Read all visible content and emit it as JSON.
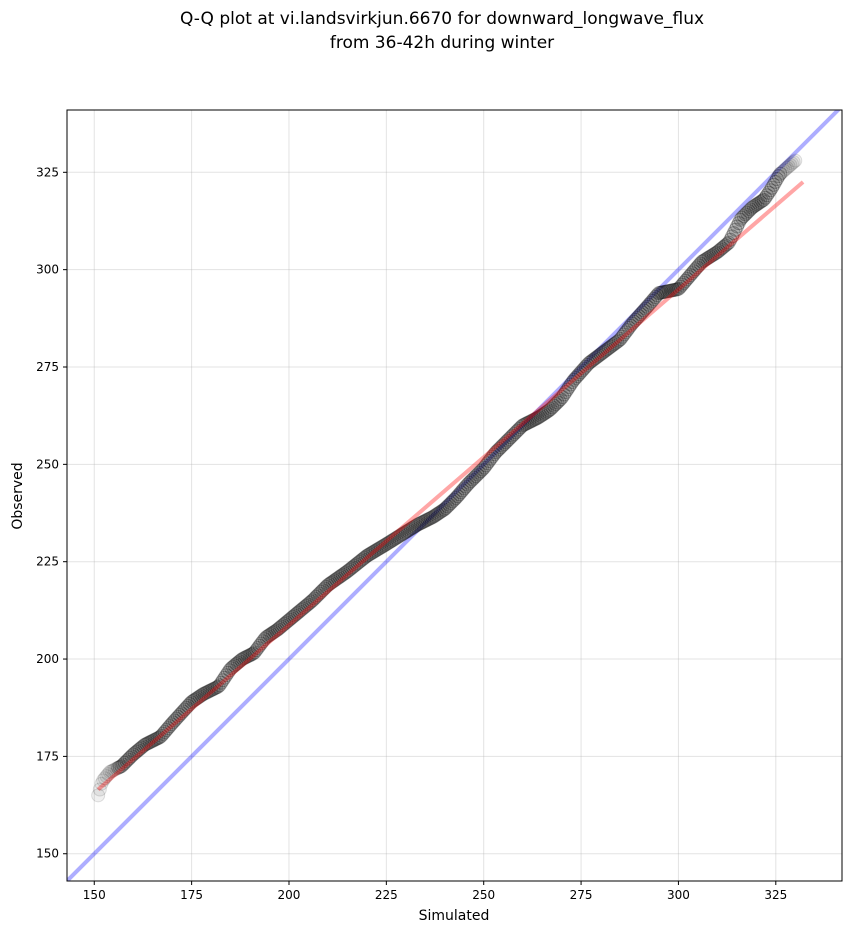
{
  "chart_data": {
    "type": "scatter",
    "title_line1": "Q-Q plot at vi.landsvirkjun.6670 for downward_longwave_flux",
    "title_line2": "from 36-42h during winter",
    "xlabel": "Simulated",
    "ylabel": "Observed",
    "xlim": [
      143,
      342
    ],
    "ylim": [
      143,
      341
    ],
    "xticks": [
      150,
      175,
      200,
      225,
      250,
      275,
      300,
      325
    ],
    "yticks": [
      150,
      175,
      200,
      225,
      250,
      275,
      300,
      325
    ],
    "grid": true,
    "identity_line": {
      "color": "#0000ff",
      "opacity": 0.32
    },
    "fit_line": {
      "color": "#ff0000",
      "opacity": 0.35,
      "x": [
        151,
        332
      ],
      "y": [
        166.5,
        322.5
      ]
    },
    "quantile_knots": [
      [
        151,
        165
      ],
      [
        152,
        168.5
      ],
      [
        154,
        171
      ],
      [
        157,
        172.5
      ],
      [
        160,
        175.5
      ],
      [
        163,
        178
      ],
      [
        167,
        180
      ],
      [
        170,
        183.5
      ],
      [
        175,
        189
      ],
      [
        178,
        191
      ],
      [
        182,
        193
      ],
      [
        185,
        197.5
      ],
      [
        188,
        200
      ],
      [
        191,
        201.5
      ],
      [
        194,
        205.5
      ],
      [
        197,
        207.5
      ],
      [
        200,
        210
      ],
      [
        203,
        212.5
      ],
      [
        206,
        215
      ],
      [
        210,
        219
      ],
      [
        215,
        222.5
      ],
      [
        220,
        226.5
      ],
      [
        225,
        229.5
      ],
      [
        229,
        232
      ],
      [
        233,
        234.5
      ],
      [
        237,
        236.5
      ],
      [
        240,
        238.5
      ],
      [
        243,
        241.5
      ],
      [
        246,
        245
      ],
      [
        250,
        249
      ],
      [
        253,
        253
      ],
      [
        256,
        256
      ],
      [
        260,
        260
      ],
      [
        264,
        262
      ],
      [
        267,
        264
      ],
      [
        270,
        267
      ],
      [
        273,
        271.5
      ],
      [
        277,
        276
      ],
      [
        281,
        279
      ],
      [
        285,
        282
      ],
      [
        288,
        286
      ],
      [
        292,
        290.5
      ],
      [
        295,
        294
      ],
      [
        300,
        295
      ],
      [
        303,
        298.5
      ],
      [
        306,
        302
      ],
      [
        310,
        304.5
      ],
      [
        313,
        307
      ],
      [
        316,
        313
      ],
      [
        319,
        316
      ],
      [
        322,
        318
      ],
      [
        324,
        321
      ],
      [
        326,
        324.5
      ],
      [
        330,
        328
      ]
    ],
    "point_count": 420,
    "point_color": "#000000"
  }
}
